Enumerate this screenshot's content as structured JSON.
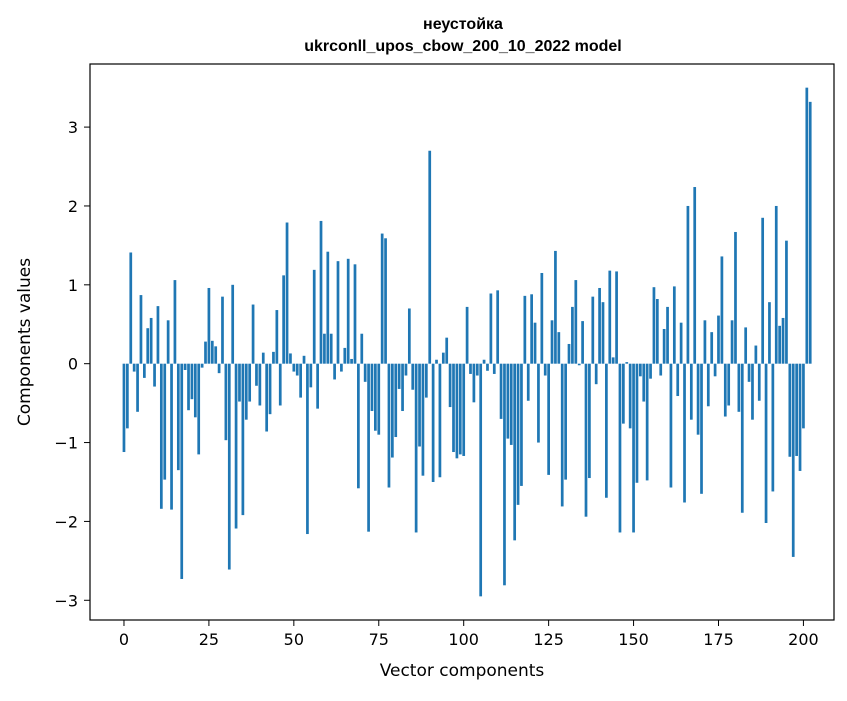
{
  "chart_data": {
    "type": "bar",
    "title_line1": "неустойка",
    "title_line2": "ukrconll_upos_cbow_200_10_2022 model",
    "xlabel": "Vector components",
    "ylabel": "Components values",
    "xlim": [
      -10,
      209
    ],
    "ylim": [
      -3.25,
      3.8
    ],
    "xticks": [
      0,
      25,
      50,
      75,
      100,
      125,
      150,
      175,
      200
    ],
    "yticks": [
      -3,
      -2,
      -1,
      0,
      1,
      2,
      3
    ],
    "ytick_labels": [
      "−3",
      "−2",
      "−1",
      "0",
      "1",
      "2",
      "3"
    ],
    "bar_color": "#1f77b4",
    "grid": false,
    "values": [
      -1.12,
      -0.82,
      1.41,
      -0.1,
      -0.61,
      0.87,
      -0.18,
      0.45,
      0.58,
      -0.29,
      0.73,
      -1.84,
      -1.47,
      0.55,
      -1.85,
      1.06,
      -1.35,
      -2.73,
      -0.08,
      -0.59,
      -0.45,
      -0.68,
      -1.15,
      -0.05,
      0.28,
      0.96,
      0.29,
      0.22,
      -0.12,
      0.85,
      -0.97,
      -2.61,
      1.0,
      -2.09,
      -0.48,
      -1.92,
      -0.71,
      -0.48,
      0.75,
      -0.28,
      -0.53,
      0.14,
      -0.86,
      -0.64,
      0.15,
      0.68,
      -0.53,
      1.12,
      1.79,
      0.13,
      -0.1,
      -0.15,
      -0.43,
      0.1,
      -2.16,
      -0.3,
      1.19,
      -0.57,
      1.81,
      0.38,
      1.42,
      0.38,
      -0.2,
      1.3,
      -0.1,
      0.2,
      1.33,
      0.06,
      1.26,
      -1.58,
      0.38,
      -0.23,
      -2.13,
      -0.6,
      -0.85,
      -0.9,
      1.65,
      1.59,
      -1.57,
      -1.19,
      -0.93,
      -0.32,
      -0.6,
      -0.15,
      0.7,
      -0.33,
      -2.14,
      -1.05,
      -1.42,
      -0.43,
      2.7,
      -1.5,
      0.05,
      -1.44,
      0.14,
      0.33,
      -0.55,
      -1.12,
      -1.2,
      -1.15,
      -1.17,
      0.72,
      -0.13,
      -0.49,
      -0.15,
      -2.95,
      0.05,
      -0.09,
      0.89,
      -0.13,
      0.93,
      -0.7,
      -2.81,
      -0.95,
      -1.03,
      -2.24,
      -1.79,
      -1.55,
      0.86,
      -0.47,
      0.88,
      0.52,
      -1.0,
      1.15,
      -0.15,
      -1.41,
      0.55,
      1.43,
      0.4,
      -1.81,
      -1.47,
      0.25,
      0.72,
      1.06,
      -0.02,
      0.54,
      -1.94,
      -1.45,
      0.85,
      -0.26,
      0.96,
      0.78,
      -1.7,
      1.18,
      0.08,
      1.17,
      -2.14,
      -0.76,
      0.02,
      -0.82,
      -2.14,
      -1.51,
      -0.16,
      -0.48,
      -1.48,
      -0.19,
      0.97,
      0.82,
      -0.15,
      0.44,
      0.72,
      -1.57,
      0.98,
      -0.41,
      0.52,
      -1.76,
      2.0,
      -0.71,
      2.24,
      -0.9,
      -1.65,
      0.55,
      -0.54,
      0.4,
      -0.16,
      0.61,
      1.36,
      -0.67,
      -0.53,
      0.55,
      1.67,
      -0.61,
      -1.89,
      0.46,
      -0.23,
      -0.71,
      0.23,
      -0.47,
      1.85,
      -2.02,
      0.78,
      -1.62,
      2.0,
      0.48,
      0.58,
      1.56,
      -1.18,
      -2.45,
      -1.17,
      -1.36,
      -0.82,
      3.5,
      3.32
    ]
  }
}
